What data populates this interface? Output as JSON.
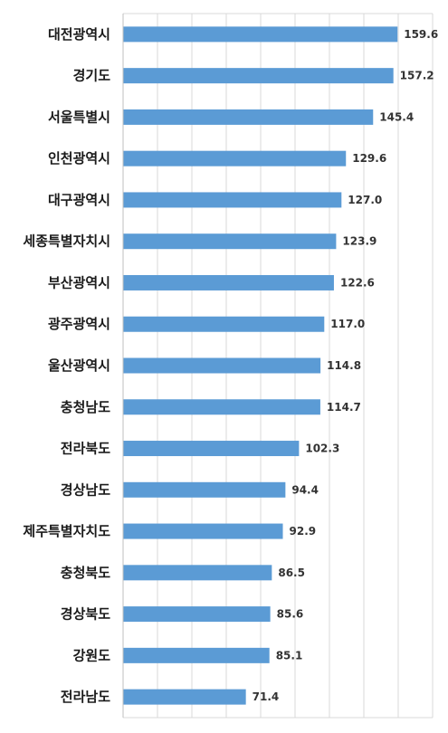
{
  "chart_data": {
    "type": "bar",
    "orientation": "horizontal",
    "categories": [
      "대전광역시",
      "경기도",
      "서울특별시",
      "인천광역시",
      "대구광역시",
      "세종특별자치시",
      "부산광역시",
      "광주광역시",
      "울산광역시",
      "충청남도",
      "전라북도",
      "경상남도",
      "제주특별자치도",
      "충청북도",
      "경상북도",
      "강원도",
      "전라남도"
    ],
    "values": [
      159.6,
      157.2,
      145.4,
      129.6,
      127.0,
      123.9,
      122.6,
      117.0,
      114.8,
      114.7,
      102.3,
      94.4,
      92.9,
      86.5,
      85.6,
      85.1,
      71.4
    ],
    "value_labels": [
      "159.6",
      "157.2",
      "145.4",
      "129.6",
      "127.0",
      "123.9",
      "122.6",
      "117.0",
      "114.8",
      "114.7",
      "102.3",
      "94.4",
      "92.9",
      "86.5",
      "85.6",
      "85.1",
      "71.4"
    ],
    "xlim": [
      0,
      180
    ],
    "grid": true,
    "bar_color": "#5b9bd5",
    "grid_color": "#d9d9d9",
    "title": "",
    "xlabel": "",
    "ylabel": ""
  }
}
